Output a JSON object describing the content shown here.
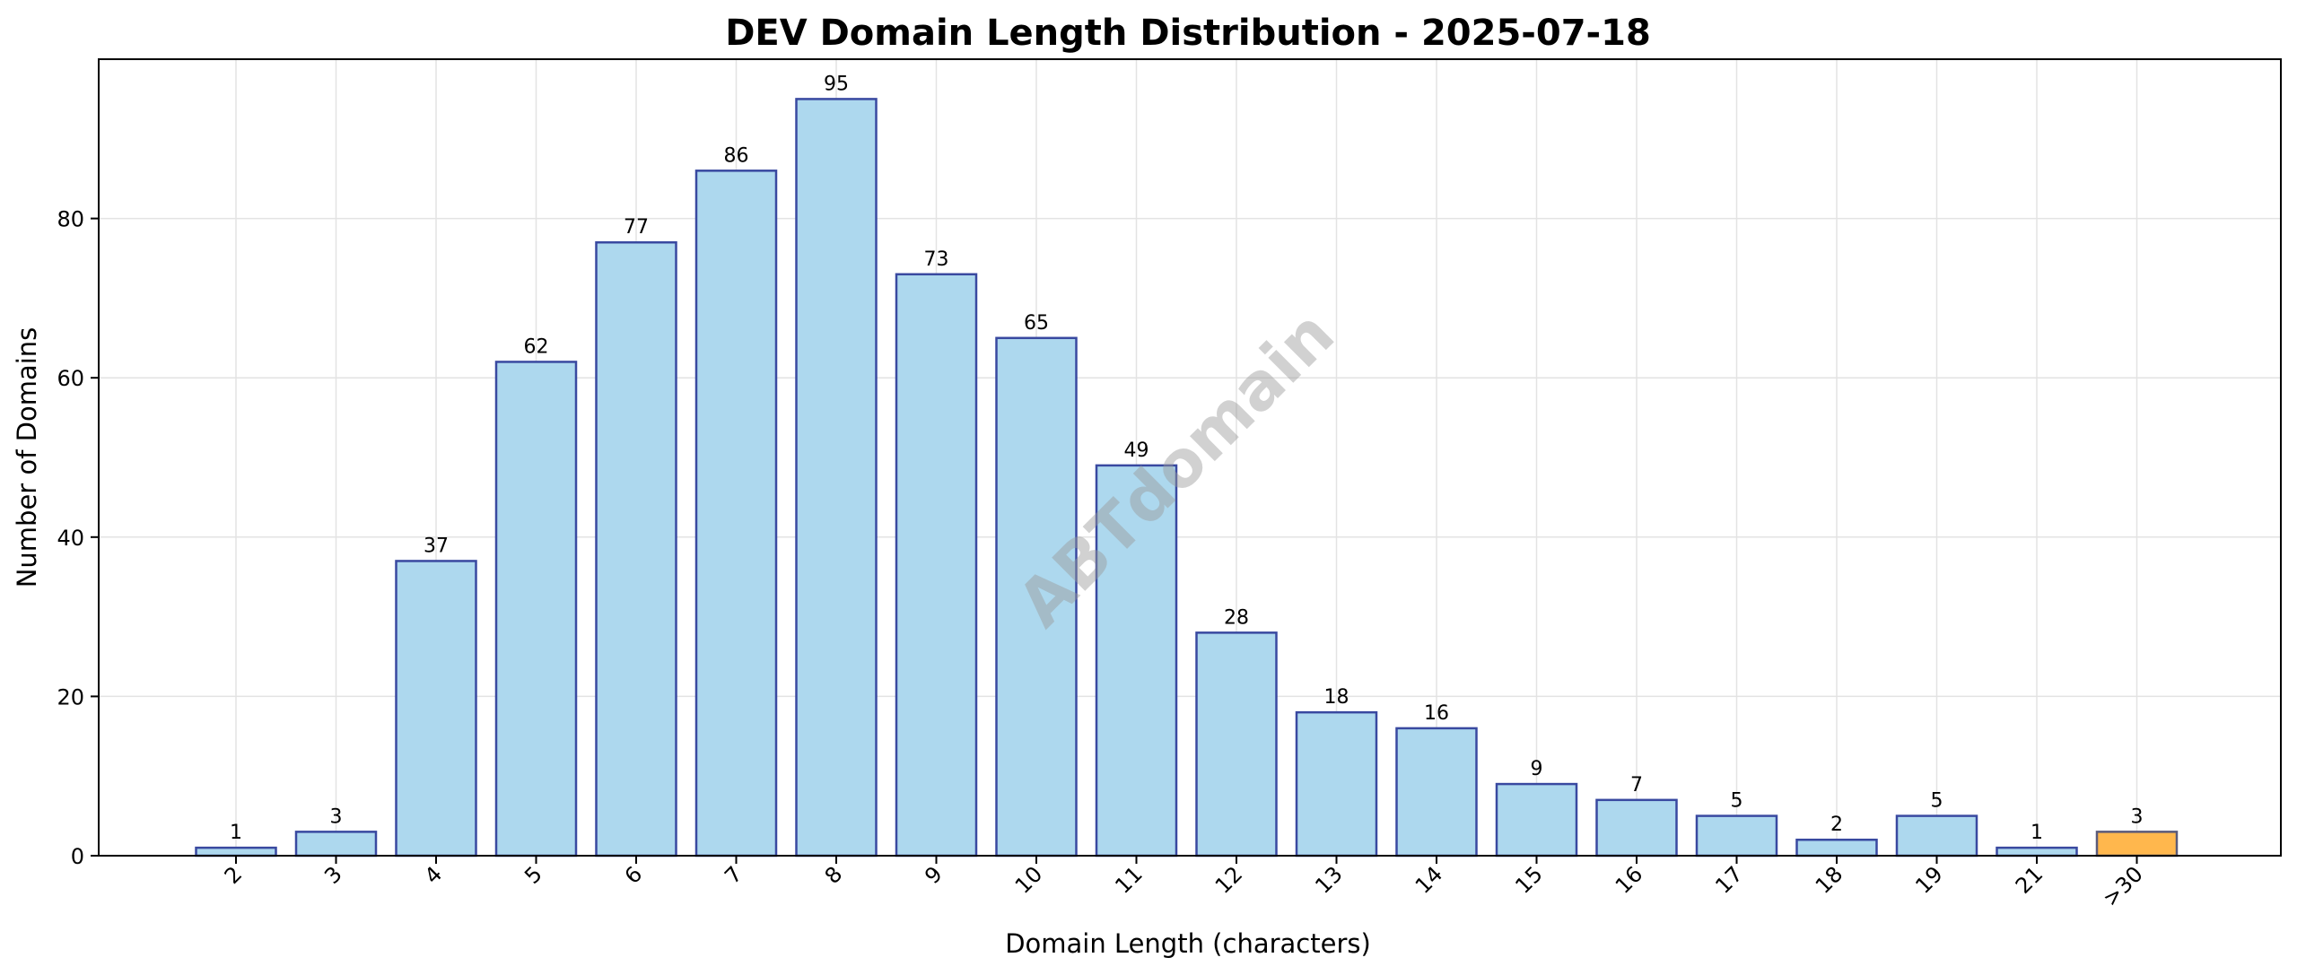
{
  "chart_data": {
    "type": "bar",
    "title": "DEV Domain Length Distribution - 2025-07-18",
    "xlabel": "Domain Length (characters)",
    "ylabel": "Number of Domains",
    "categories": [
      "2",
      "3",
      "4",
      "5",
      "6",
      "7",
      "8",
      "9",
      "10",
      "11",
      "12",
      "13",
      "14",
      "15",
      "16",
      "17",
      "18",
      "19",
      "21",
      ">30"
    ],
    "values": [
      1,
      3,
      37,
      62,
      77,
      86,
      95,
      73,
      65,
      49,
      28,
      18,
      16,
      9,
      7,
      5,
      2,
      5,
      1,
      3
    ],
    "ylim": [
      0,
      100
    ],
    "yticks": [
      0,
      20,
      40,
      60,
      80
    ],
    "grid": true,
    "watermark": "ABTdomain",
    "colors": {
      "bar_fill": "#add8ee",
      "bar_stroke": "#3949a0",
      "highlight_fill": "#ffb74d",
      "highlight_stroke": "#5b5b7a",
      "highlight_category": ">30"
    }
  }
}
